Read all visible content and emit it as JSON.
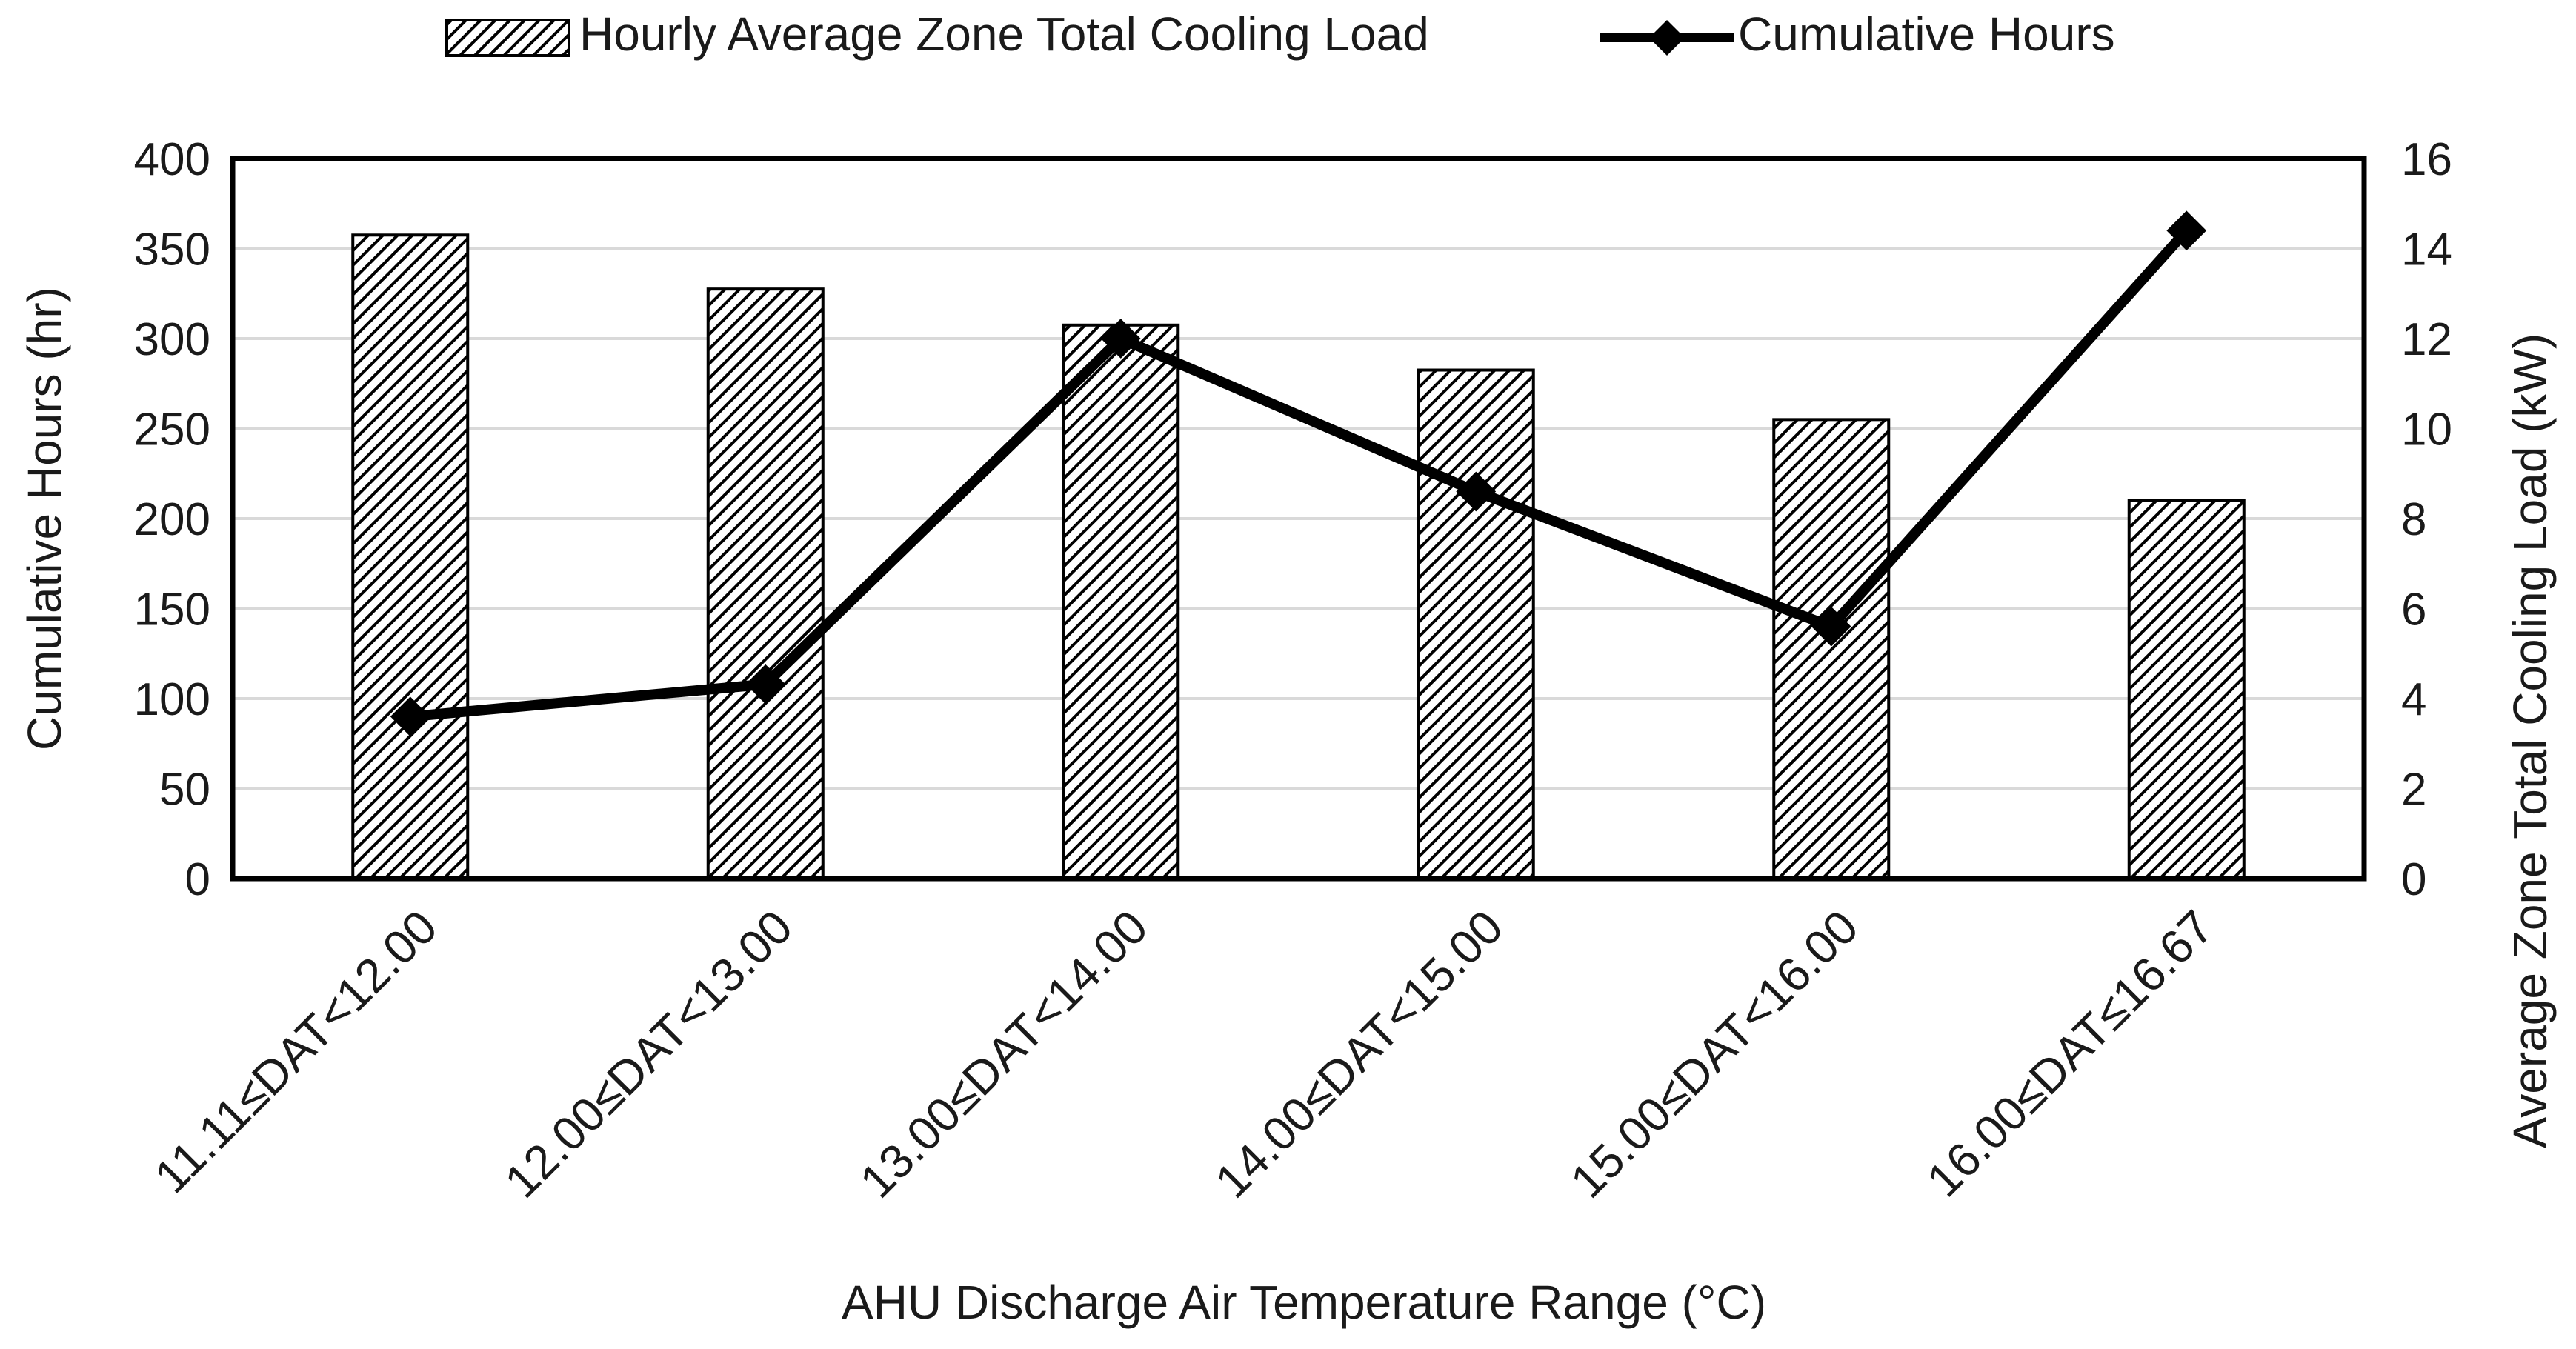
{
  "chart_data": {
    "type": "bar+line",
    "title": "",
    "xlabel": "AHU Discharge Air Temperature Range (°C)",
    "ylabel_left": "Cumulative Hours (hr)",
    "ylabel_right": "Average Zone Total Cooling Load (kW)",
    "categories": [
      "11.11≤DAT<12.00",
      "12.00≤DAT<13.00",
      "13.00≤DAT<14.00",
      "14.00≤DAT<15.00",
      "15.00≤DAT<16.00",
      "16.00≤DAT≤16.67"
    ],
    "ylim_left": [
      0,
      400
    ],
    "yticks_left": [
      0,
      50,
      100,
      150,
      200,
      250,
      300,
      350,
      400
    ],
    "ylim_right": [
      0,
      16
    ],
    "yticks_right": [
      0,
      2,
      4,
      6,
      8,
      10,
      12,
      14,
      16
    ],
    "grid": true,
    "legend_position": "top-center",
    "series": [
      {
        "name": "Hourly Average Zone Total Cooling Load",
        "type": "bar",
        "axis": "right",
        "pattern": "diagonal-hatch",
        "values": [
          14.3,
          13.1,
          12.3,
          11.3,
          10.2,
          8.4
        ]
      },
      {
        "name": "Cumulative Hours",
        "type": "line",
        "axis": "left",
        "marker": "diamond",
        "values": [
          90,
          108,
          300,
          215,
          140,
          360
        ]
      }
    ],
    "colors": {
      "line": "#000000",
      "bar_fill": "#ffffff",
      "hatch": "#000000",
      "grid": "#d9d9d9"
    }
  }
}
